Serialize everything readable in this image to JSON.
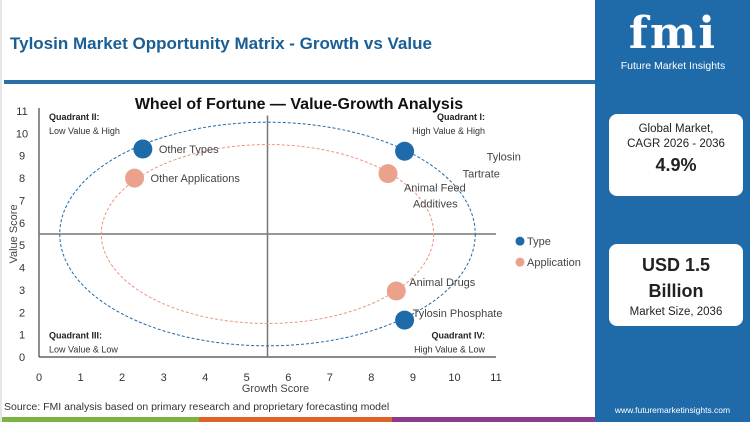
{
  "header": {
    "title": "Tylosin Market Opportunity Matrix - Growth vs Value"
  },
  "chart_data": {
    "type": "scatter",
    "title": "Wheel of Fortune — Value-Growth Analysis",
    "xlabel": "Growth Score",
    "ylabel": "Value Score",
    "xlim": [
      0,
      11
    ],
    "ylim": [
      0,
      11
    ],
    "xticks": [
      0,
      1,
      2,
      3,
      4,
      5,
      6,
      7,
      8,
      9,
      10,
      11
    ],
    "yticks": [
      0,
      1,
      2,
      3,
      4,
      5,
      6,
      7,
      8,
      9,
      10,
      11
    ],
    "quadrant_divider": {
      "x": 5.5,
      "y": 5.5
    },
    "quadrants": [
      {
        "title": "Quadrant II:",
        "subtitle": "Low Value & High",
        "position": "top-left"
      },
      {
        "title": "Quadrant I:",
        "subtitle": "High Value & High",
        "position": "top-right"
      },
      {
        "title": "Quadrant III:",
        "subtitle": "Low Value & Low",
        "position": "bottom-left"
      },
      {
        "title": "Quadrant IV:",
        "subtitle": "High Value & Low",
        "position": "bottom-right"
      }
    ],
    "ellipses": [
      {
        "series": "Type",
        "cx": 5.5,
        "cy": 5.5,
        "rx": 5,
        "ry": 5,
        "color": "#1f6aa8"
      },
      {
        "series": "Application",
        "cx": 5.5,
        "cy": 5.5,
        "rx": 4,
        "ry": 4,
        "color": "#e9957f"
      }
    ],
    "legend_position": "right",
    "series": [
      {
        "name": "Type",
        "color": "#1f6aa8",
        "points": [
          {
            "label": "Other Types",
            "x": 2.5,
            "y": 9.3
          },
          {
            "label": "Tylosin Tartrate",
            "x": 8.8,
            "y": 9.2
          },
          {
            "label": "Tylosin Phosphate",
            "x": 8.8,
            "y": 1.65
          }
        ]
      },
      {
        "name": "Application",
        "color": "#eba28c",
        "points": [
          {
            "label": "Other Applications",
            "x": 2.3,
            "y": 8.0
          },
          {
            "label": "Animal Feed Additives",
            "x": 8.4,
            "y": 8.2
          },
          {
            "label": "Animal Drugs",
            "x": 8.6,
            "y": 2.95
          }
        ]
      }
    ]
  },
  "source": "Source: FMI analysis based on primary research and proprietary forecasting model",
  "brand": {
    "logo_text": "fmi",
    "name": "Future Market Insights",
    "url": "www.futuremarketinsights.com",
    "color": "#1f6aa8"
  },
  "cards": {
    "cagr_label_1": "Global Market,",
    "cagr_label_2": "CAGR 2026 - 2036",
    "cagr_value": "4.9%",
    "size_value_1": "USD 1.5",
    "size_value_2": "Billion",
    "size_label": "Market Size, 2036"
  },
  "stripes": [
    "#7cb342",
    "#e0622b",
    "#8e3a8c"
  ]
}
